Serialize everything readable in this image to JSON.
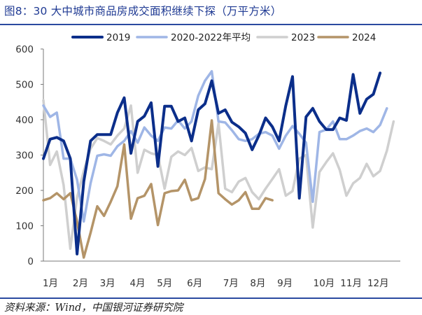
{
  "page": {
    "title": "图8：30 大中城市商品房成交面积继续下探（万平方米）",
    "source": "资料来源：Wind，中国银河证券研究院"
  },
  "chart_data": {
    "type": "line",
    "title": "",
    "xlabel": "",
    "ylabel": "",
    "ylim": [
      0,
      600
    ],
    "yticks": [
      0,
      100,
      200,
      300,
      400,
      500,
      600
    ],
    "xlim": [
      0,
      53
    ],
    "month_labels": [
      "1月",
      "2月",
      "3月",
      "4月",
      "5月",
      "6月",
      "7月",
      "8月",
      "9月",
      "10月",
      "11月",
      "12月"
    ],
    "month_label_weeks": [
      0,
      5,
      9.5,
      14.5,
      19,
      24,
      30,
      34.5,
      39,
      45.5,
      50,
      54.5
    ],
    "legend_placement": "top",
    "grid": false,
    "series": [
      {
        "name": "2019",
        "color": "#0b2e8a",
        "line_width": 4,
        "values": [
          290,
          345,
          350,
          340,
          290,
          20,
          225,
          340,
          358,
          358,
          358,
          420,
          462,
          305,
          395,
          410,
          448,
          268,
          438,
          438,
          395,
          405,
          340,
          428,
          445,
          510,
          418,
          428,
          393,
          380,
          362,
          315,
          355,
          405,
          380,
          340,
          440,
          522,
          178,
          408,
          432,
          395,
          372,
          372,
          405,
          398,
          528,
          418,
          458,
          472,
          532
        ]
      },
      {
        "name": "2020-2022年平均",
        "color": "#9fb6e6",
        "line_width": 3.5,
        "values": [
          440,
          408,
          420,
          290,
          290,
          230,
          112,
          220,
          298,
          302,
          298,
          325,
          340,
          368,
          335,
          378,
          355,
          340,
          378,
          375,
          398,
          375,
          395,
          468,
          510,
          537,
          395,
          392,
          370,
          345,
          340,
          345,
          360,
          365,
          355,
          318,
          355,
          382,
          360,
          335,
          168,
          365,
          372,
          395,
          345,
          345,
          355,
          368,
          375,
          365,
          385,
          432
        ]
      },
      {
        "name": "2023",
        "color": "#cfcfcf",
        "line_width": 3.5,
        "values": [
          455,
          272,
          310,
          215,
          35,
          180,
          255,
          318,
          348,
          340,
          330,
          355,
          375,
          440,
          250,
          315,
          305,
          300,
          205,
          295,
          310,
          300,
          320,
          255,
          265,
          260,
          390,
          205,
          195,
          225,
          235,
          195,
          175,
          205,
          232,
          260,
          185,
          198,
          290,
          300,
          95,
          252,
          280,
          305,
          258,
          185,
          220,
          235,
          275,
          240,
          255,
          312,
          395
        ]
      },
      {
        "name": "2024",
        "color": "#b49468",
        "line_width": 3.5,
        "values": [
          172,
          178,
          192,
          175,
          192,
          112,
          10,
          80,
          155,
          128,
          168,
          212,
          330,
          120,
          178,
          185,
          218,
          102,
          192,
          198,
          200,
          230,
          172,
          178,
          232,
          398,
          192,
          175,
          160,
          172,
          195,
          148,
          148,
          178,
          172
        ]
      }
    ]
  }
}
